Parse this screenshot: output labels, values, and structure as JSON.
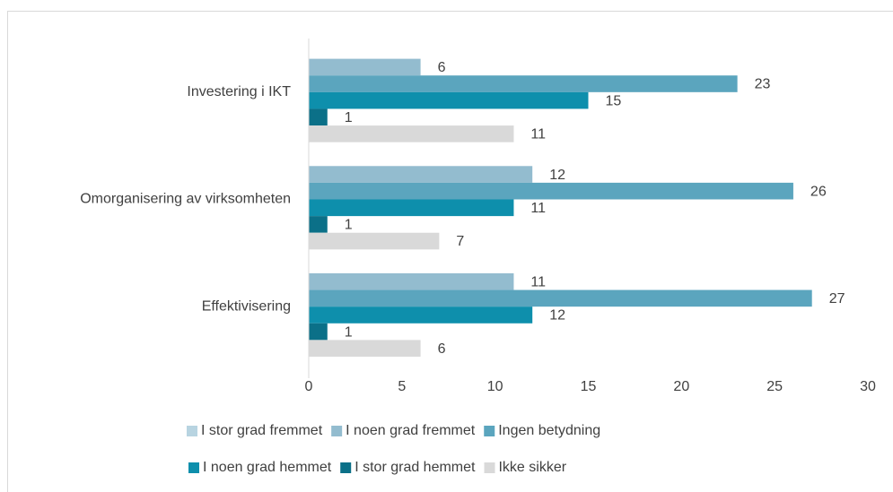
{
  "chart_data": {
    "type": "bar",
    "orientation": "horizontal",
    "categories": [
      "Investering i IKT",
      "Omorganisering av virksomheten",
      "Effektivisering"
    ],
    "series": [
      {
        "name": "I stor grad fremmet",
        "color": "#b8d4e1",
        "values": [
          null,
          null,
          null
        ]
      },
      {
        "name": "I noen grad fremmet",
        "color": "#93bccf",
        "values": [
          6,
          12,
          11
        ]
      },
      {
        "name": "Ingen betydning",
        "color": "#5ba5be",
        "values": [
          23,
          26,
          27
        ]
      },
      {
        "name": "I noen grad hemmet",
        "color": "#0e8fac",
        "values": [
          15,
          11,
          12
        ]
      },
      {
        "name": "I stor grad hemmet",
        "color": "#0b7088",
        "values": [
          1,
          1,
          1
        ]
      },
      {
        "name": "Ikke sikker",
        "color": "#d9d9d9",
        "values": [
          11,
          7,
          6
        ]
      }
    ],
    "xlim": [
      0,
      30
    ],
    "xticks": [
      0,
      5,
      10,
      15,
      20,
      25,
      30
    ],
    "grid": false,
    "legend": "bottom"
  }
}
